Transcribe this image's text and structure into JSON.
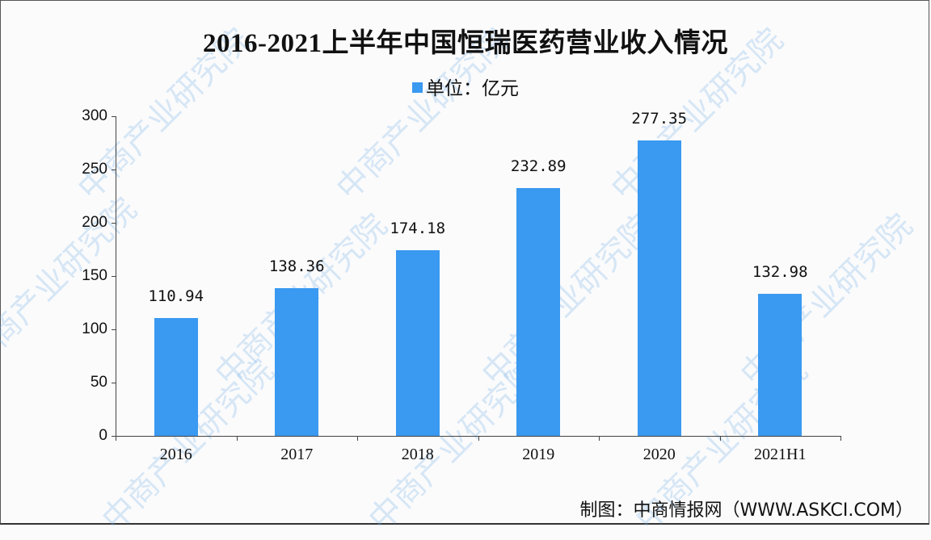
{
  "title": "2016-2021上半年中国恒瑞医药营业收入情况",
  "legend": {
    "label": "单位：亿元",
    "color": "#3a99f0"
  },
  "source": "制图：中商情报网（WWW.ASKCI.COM）",
  "watermark": "中商产业研究院",
  "chart_data": {
    "type": "bar",
    "title": "2016-2021上半年中国恒瑞医药营业收入情况",
    "xlabel": "",
    "ylabel": "",
    "unit": "亿元",
    "categories": [
      "2016",
      "2017",
      "2018",
      "2019",
      "2020",
      "2021H1"
    ],
    "series": [
      {
        "name": "单位：亿元",
        "values": [
          110.94,
          138.36,
          174.18,
          232.89,
          277.35,
          132.98
        ]
      }
    ],
    "value_labels": [
      "110.94",
      "138.36",
      "174.18",
      "232.89",
      "277.35",
      "132.98"
    ],
    "ylim": [
      0,
      300
    ],
    "yticks": [
      0,
      50,
      100,
      150,
      200,
      250,
      300
    ],
    "grid": false,
    "legend_position": "top-center",
    "bar_color": "#3a99f0"
  }
}
